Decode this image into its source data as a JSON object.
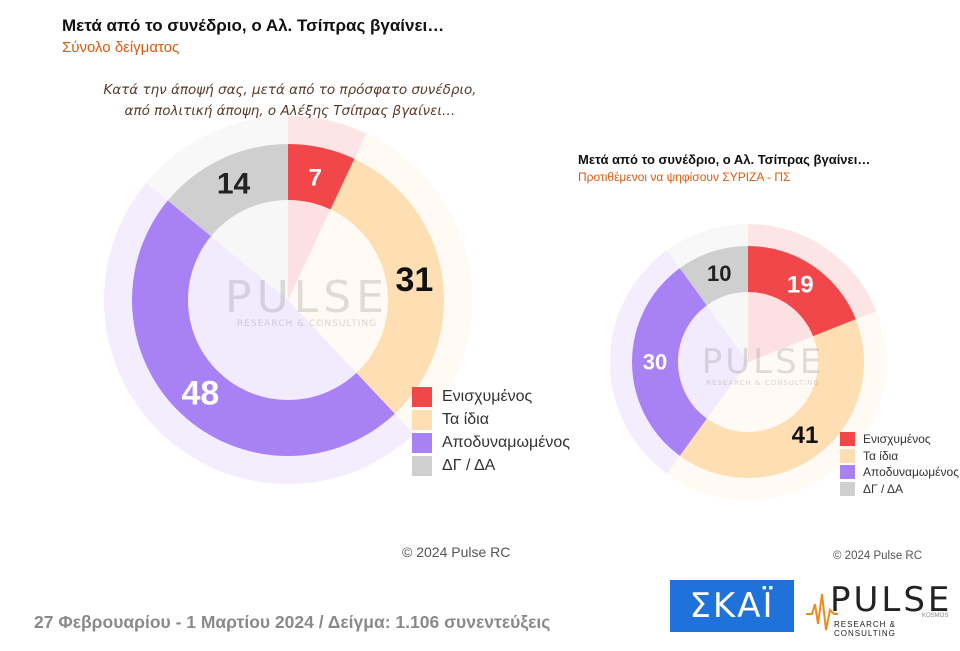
{
  "header": {
    "title": "Μετά από το συνέδριο, ο Αλ. Τσίπρας βγαίνει…",
    "subtitle": "Σύνολο δείγματος",
    "question_line1": "Κατά την άποψή σας, μετά από το πρόσφατο συνέδριο,",
    "question_line2": "από πολιτική άποψη, ο Αλέξης Τσίπρας βγαίνει…"
  },
  "right_header": {
    "title": "Μετά από το συνέδριο, ο Αλ. Τσίπρας βγαίνει…",
    "subtitle": "Προτιθέμενοι να ψηφίσουν ΣΥΡΙΖΑ - ΠΣ"
  },
  "colors": {
    "ενισχυμενος": "#f2474a",
    "τα_ιδια": "#fddfb3",
    "αποδυναμωμενος": "#a882f5",
    "δγ_δα": "#cfcfcf"
  },
  "chart_data": [
    {
      "type": "pie",
      "variant": "donut",
      "title": "Μετά από το συνέδριο, ο Αλ. Τσίπρας βγαίνει…",
      "subtitle": "Σύνολο δείγματος",
      "categories": [
        "Ενισχυμένος",
        "Τα ίδια",
        "Αποδυναμωμένος",
        "ΔΓ / ΔΑ"
      ],
      "values": [
        7,
        31,
        48,
        14
      ],
      "legend_position": "bottom-right"
    },
    {
      "type": "pie",
      "variant": "donut",
      "title": "Μετά από το συνέδριο, ο Αλ. Τσίπρας βγαίνει…",
      "subtitle": "Προτιθέμενοι να ψηφίσουν ΣΥΡΙΖΑ - ΠΣ",
      "categories": [
        "Ενισχυμένος",
        "Τα ίδια",
        "Αποδυναμωμένος",
        "ΔΓ / ΔΑ"
      ],
      "values": [
        19,
        41,
        30,
        10
      ],
      "legend_position": "bottom-right"
    }
  ],
  "legend": {
    "items": [
      "Ενισχυμένος",
      "Τα ίδια",
      "Αποδυναμωμένος",
      "ΔΓ / ΔΑ"
    ]
  },
  "watermark": {
    "word": "PULSE",
    "tagline": "RESEARCH & CONSULTING"
  },
  "copyright_center": "© 2024 Pulse RC",
  "copyright_right": "© 2024 Pulse RC",
  "footer": "27 Φεβρουαρίου - 1 Μαρτίου 2024  /  Δείγμα:  1.106 συνεντεύξεις",
  "logos": {
    "skai": "ΣΚΑΪ",
    "pulse": "PULSE",
    "pulse_tagline": "RESEARCH & CONSULTING",
    "pulse_small": "KOSMOS"
  }
}
